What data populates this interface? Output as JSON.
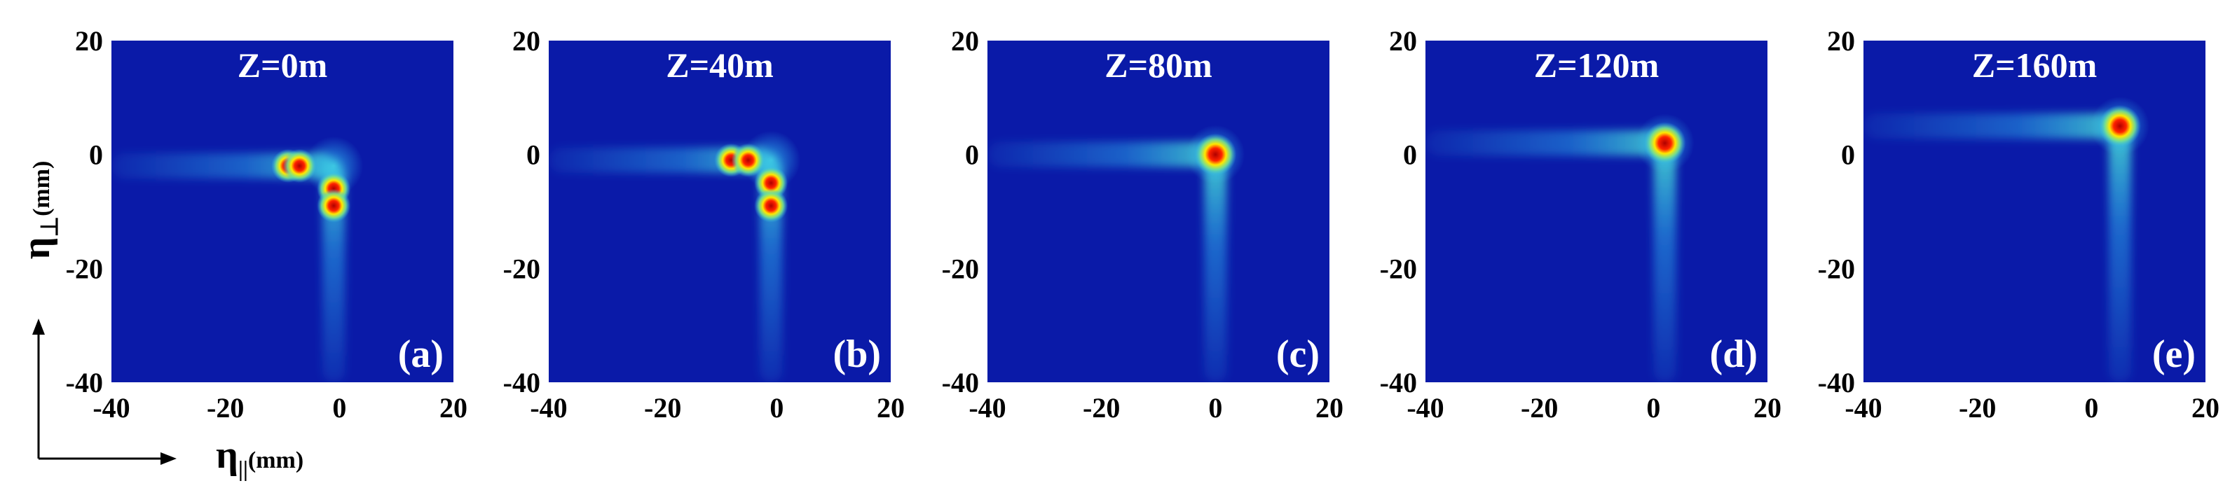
{
  "chart_data": [
    {
      "type": "heatmap",
      "title": "Z=0m",
      "panel_label": "(a)",
      "xlim": [
        -40,
        20
      ],
      "ylim": [
        -40,
        20
      ],
      "xticks": [
        "-40",
        "-20",
        "0",
        "20"
      ],
      "yticks": [
        "20",
        "0",
        "-20",
        "-40"
      ],
      "hot_spots": [
        {
          "x": -9,
          "y": -2
        },
        {
          "x": -7,
          "y": -2
        },
        {
          "x": -1,
          "y": -6
        },
        {
          "x": -1,
          "y": -9
        }
      ],
      "horizontal_tail": {
        "y": -2,
        "x_from": -40,
        "x_to": -1
      },
      "vertical_tail": {
        "x": -1,
        "y_from": -40,
        "y_to": -2
      }
    },
    {
      "type": "heatmap",
      "title": "Z=40m",
      "panel_label": "(b)",
      "xlim": [
        -40,
        20
      ],
      "ylim": [
        -40,
        20
      ],
      "xticks": [
        "-40",
        "-20",
        "0",
        "20"
      ],
      "yticks": [
        "20",
        "0",
        "-20",
        "-40"
      ],
      "hot_spots": [
        {
          "x": -8,
          "y": -1
        },
        {
          "x": -5,
          "y": -1
        },
        {
          "x": -1,
          "y": -5
        },
        {
          "x": -1,
          "y": -9
        }
      ],
      "horizontal_tail": {
        "y": -1,
        "x_from": -40,
        "x_to": -1
      },
      "vertical_tail": {
        "x": -1,
        "y_from": -40,
        "y_to": -1
      }
    },
    {
      "type": "heatmap",
      "title": "Z=80m",
      "panel_label": "(c)",
      "xlim": [
        -40,
        20
      ],
      "ylim": [
        -40,
        20
      ],
      "xticks": [
        "-40",
        "-20",
        "0",
        "20"
      ],
      "yticks": [
        "20",
        "0",
        "-20",
        "-40"
      ],
      "hot_spots": [
        {
          "x": 0,
          "y": 0
        }
      ],
      "horizontal_tail": {
        "y": 0,
        "x_from": -40,
        "x_to": 0
      },
      "vertical_tail": {
        "x": 0,
        "y_from": -40,
        "y_to": 0
      }
    },
    {
      "type": "heatmap",
      "title": "Z=120m",
      "panel_label": "(d)",
      "xlim": [
        -40,
        20
      ],
      "ylim": [
        -40,
        20
      ],
      "xticks": [
        "-40",
        "-20",
        "0",
        "20"
      ],
      "yticks": [
        "20",
        "0",
        "-20",
        "-40"
      ],
      "hot_spots": [
        {
          "x": 2,
          "y": 2
        }
      ],
      "horizontal_tail": {
        "y": 2,
        "x_from": -40,
        "x_to": 2
      },
      "vertical_tail": {
        "x": 2,
        "y_from": -40,
        "y_to": 2
      }
    },
    {
      "type": "heatmap",
      "title": "Z=160m",
      "panel_label": "(e)",
      "xlim": [
        -40,
        20
      ],
      "ylim": [
        -40,
        20
      ],
      "xticks": [
        "-40",
        "-20",
        "0",
        "20"
      ],
      "yticks": [
        "20",
        "0",
        "-20",
        "-40"
      ],
      "hot_spots": [
        {
          "x": 5,
          "y": 5
        }
      ],
      "horizontal_tail": {
        "y": 5,
        "x_from": -40,
        "x_to": 5
      },
      "vertical_tail": {
        "x": 5,
        "y_from": -40,
        "y_to": 5
      }
    }
  ],
  "axes_indicator": {
    "y_symbol": "η",
    "y_sub": "⊥",
    "y_unit": "(mm)",
    "x_symbol": "η",
    "x_sub": "||",
    "x_unit": "(mm)"
  },
  "colors": {
    "background": "#0a1aa8",
    "glow": "#2fb6f0",
    "hot": "#ffe800",
    "core": "#b00000"
  }
}
